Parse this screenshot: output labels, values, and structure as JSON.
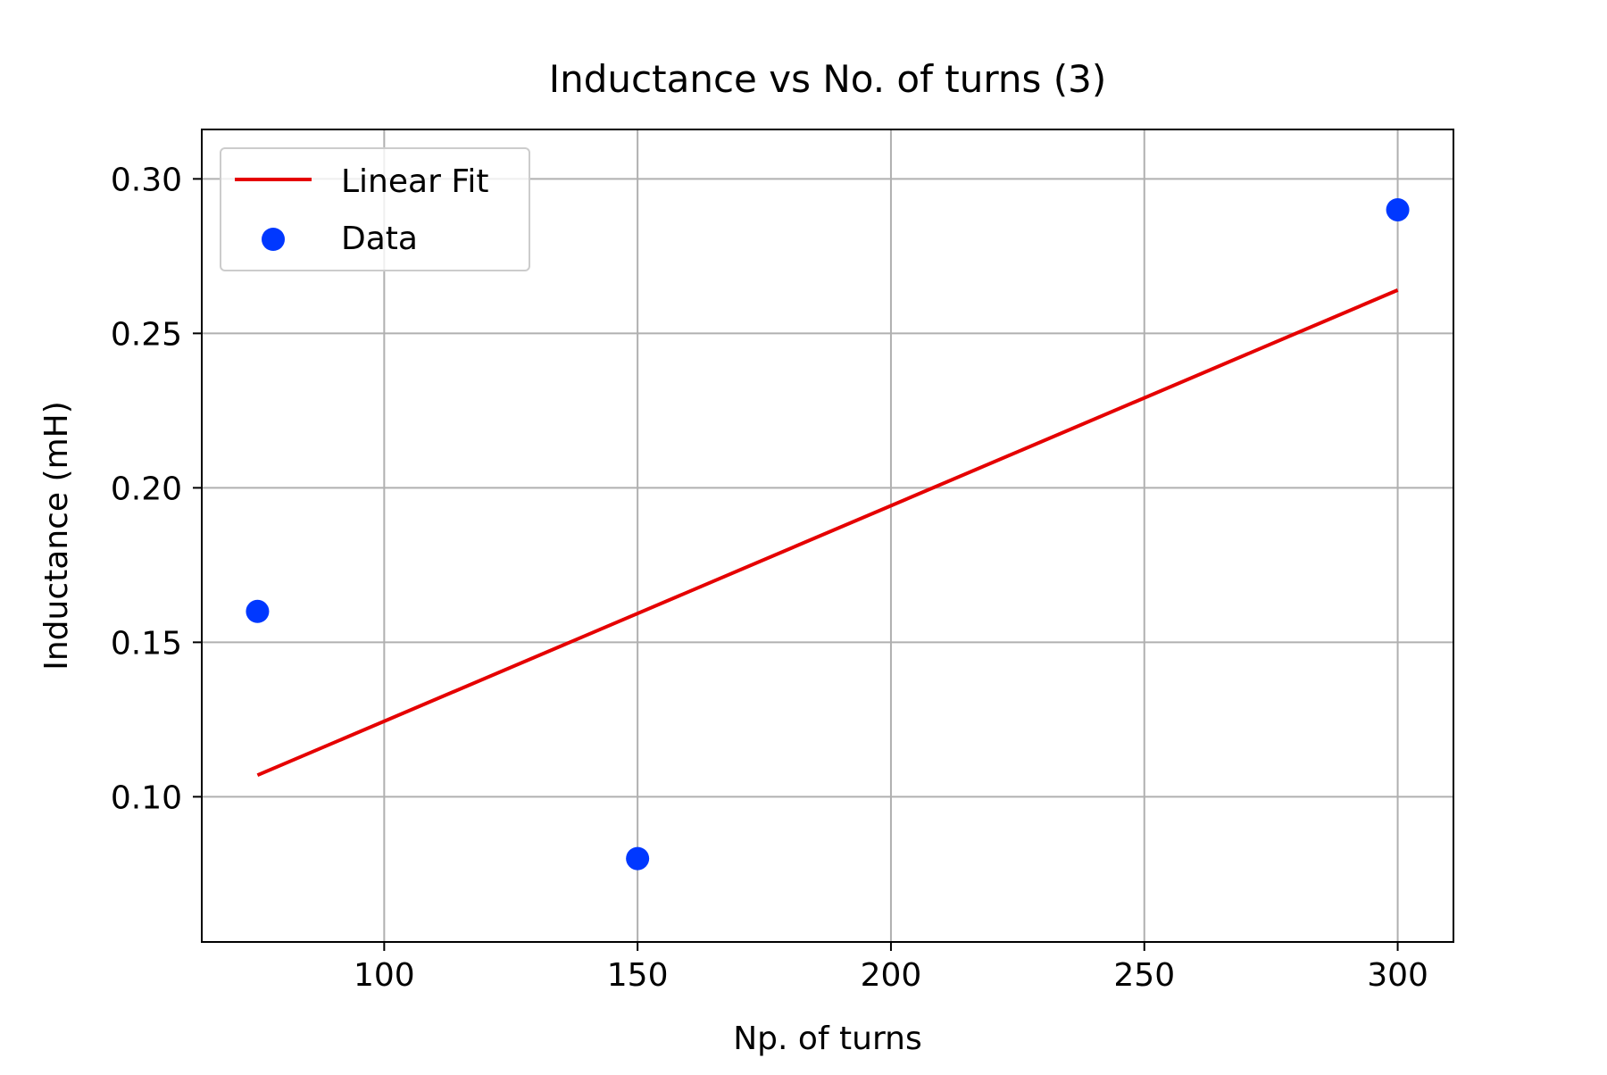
{
  "chart_data": {
    "type": "scatter",
    "title": "Inductance vs No. of turns (3)",
    "xlabel": "Np. of turns",
    "ylabel": "Inductance (mH)",
    "xlim": [
      64,
      311
    ],
    "ylim": [
      0.053,
      0.316
    ],
    "xticks": [
      100,
      150,
      200,
      250,
      300
    ],
    "xtick_labels": [
      "100",
      "150",
      "200",
      "250",
      "300"
    ],
    "yticks": [
      0.1,
      0.15,
      0.2,
      0.25,
      0.3
    ],
    "ytick_labels": [
      "0.10",
      "0.15",
      "0.20",
      "0.25",
      "0.30"
    ],
    "grid": true,
    "legend_position": "upper-left",
    "series": [
      {
        "name": "Data",
        "kind": "scatter",
        "color": "#0038ff",
        "points": [
          {
            "x": 75,
            "y": 0.16
          },
          {
            "x": 150,
            "y": 0.08
          },
          {
            "x": 300,
            "y": 0.29
          }
        ]
      },
      {
        "name": "Linear Fit",
        "kind": "line",
        "color": "#e50000",
        "points": [
          {
            "x": 75,
            "y": 0.107
          },
          {
            "x": 300,
            "y": 0.264
          }
        ]
      }
    ],
    "legend": [
      {
        "label": "Linear Fit",
        "kind": "line",
        "color": "#e50000"
      },
      {
        "label": "Data",
        "kind": "marker",
        "color": "#0038ff"
      }
    ]
  }
}
